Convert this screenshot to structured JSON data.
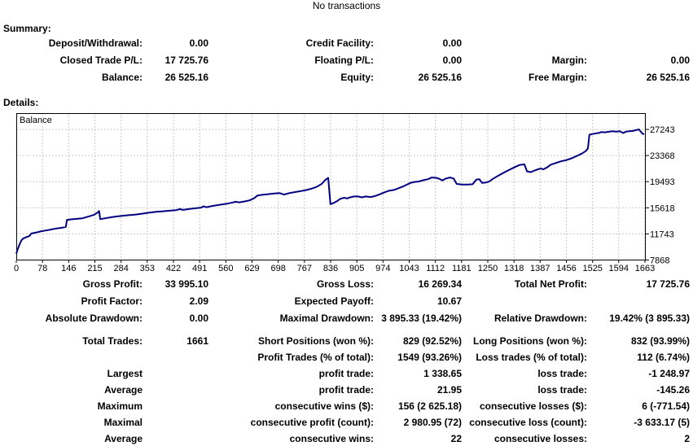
{
  "title": "No transactions",
  "summary": {
    "heading": "Summary:",
    "rows": [
      [
        "Deposit/Withdrawal:",
        "0.00",
        "Credit Facility:",
        "0.00",
        "",
        ""
      ],
      [
        "Closed Trade P/L:",
        "17 725.76",
        "Floating P/L:",
        "0.00",
        "Margin:",
        "0.00"
      ],
      [
        "Balance:",
        "26 525.16",
        "Equity:",
        "26 525.16",
        "Free Margin:",
        "26 525.16"
      ]
    ]
  },
  "details": {
    "heading": "Details:"
  },
  "stats": {
    "group_a": [
      [
        "Gross Profit:",
        "33 995.10",
        "Gross Loss:",
        "16 269.34",
        "Total Net Profit:",
        "17 725.76"
      ],
      [
        "Profit Factor:",
        "2.09",
        "Expected Payoff:",
        "10.67",
        "",
        ""
      ],
      [
        "Absolute Drawdown:",
        "0.00",
        "Maximal Drawdown:",
        "3 895.33 (19.42%)",
        "Relative Drawdown:",
        "19.42% (3 895.33)"
      ]
    ],
    "group_b": [
      [
        "Total Trades:",
        "1661",
        "Short Positions (won %):",
        "829 (92.52%)",
        "Long Positions (won %):",
        "832 (93.99%)"
      ],
      [
        "",
        "",
        "Profit Trades (% of total):",
        "1549 (93.26%)",
        "Loss trades (% of total):",
        "112 (6.74%)"
      ],
      [
        "Largest",
        "",
        "profit trade:",
        "1 338.65",
        "loss trade:",
        "-1 248.97"
      ],
      [
        "Average",
        "",
        "profit trade:",
        "21.95",
        "loss trade:",
        "-145.26"
      ],
      [
        "Maximum",
        "",
        "consecutive wins ($):",
        "156 (2 625.18)",
        "consecutive losses ($):",
        "6 (-771.54)"
      ],
      [
        "Maximal",
        "",
        "consecutive profit (count):",
        "2 980.95 (72)",
        "consecutive loss (count):",
        "-3 633.17 (5)"
      ],
      [
        "Average",
        "",
        "consecutive wins:",
        "22",
        "consecutive losses:",
        "2"
      ]
    ]
  },
  "chart_data": {
    "type": "line",
    "series_label": "Balance",
    "line_color": "#000080",
    "grid_color": "#c8c8c8",
    "border_color": "#000000",
    "x_ticks": [
      0,
      78,
      146,
      215,
      284,
      353,
      422,
      491,
      560,
      629,
      698,
      767,
      836,
      905,
      974,
      1043,
      1112,
      1181,
      1250,
      1318,
      1387,
      1456,
      1525,
      1594,
      1663
    ],
    "y_ticks": [
      7868,
      11743,
      15618,
      19493,
      23368,
      27243
    ],
    "xlim": [
      0,
      1663
    ],
    "ylim": [
      7868,
      29750
    ],
    "grid": true,
    "points": [
      [
        0,
        8800
      ],
      [
        3,
        9350
      ],
      [
        6,
        9800
      ],
      [
        10,
        10350
      ],
      [
        14,
        10800
      ],
      [
        18,
        11050
      ],
      [
        22,
        11150
      ],
      [
        28,
        11300
      ],
      [
        34,
        11400
      ],
      [
        40,
        11800
      ],
      [
        48,
        11900
      ],
      [
        56,
        12000
      ],
      [
        64,
        12100
      ],
      [
        78,
        12250
      ],
      [
        92,
        12400
      ],
      [
        106,
        12550
      ],
      [
        120,
        12650
      ],
      [
        131,
        12780
      ],
      [
        134,
        13810
      ],
      [
        145,
        13900
      ],
      [
        160,
        13980
      ],
      [
        175,
        14060
      ],
      [
        190,
        14300
      ],
      [
        205,
        14550
      ],
      [
        215,
        14900
      ],
      [
        219,
        15140
      ],
      [
        222,
        13930
      ],
      [
        235,
        14060
      ],
      [
        250,
        14200
      ],
      [
        265,
        14330
      ],
      [
        284,
        14450
      ],
      [
        300,
        14530
      ],
      [
        316,
        14620
      ],
      [
        334,
        14750
      ],
      [
        352,
        14900
      ],
      [
        370,
        15010
      ],
      [
        388,
        15100
      ],
      [
        405,
        15180
      ],
      [
        422,
        15260
      ],
      [
        433,
        15430
      ],
      [
        441,
        15310
      ],
      [
        458,
        15450
      ],
      [
        474,
        15540
      ],
      [
        489,
        15640
      ],
      [
        495,
        15830
      ],
      [
        503,
        15700
      ],
      [
        518,
        15880
      ],
      [
        538,
        16060
      ],
      [
        558,
        16230
      ],
      [
        573,
        16400
      ],
      [
        580,
        16510
      ],
      [
        590,
        16430
      ],
      [
        604,
        16560
      ],
      [
        617,
        16720
      ],
      [
        629,
        17030
      ],
      [
        638,
        17440
      ],
      [
        652,
        17550
      ],
      [
        666,
        17640
      ],
      [
        682,
        17740
      ],
      [
        697,
        17790
      ],
      [
        708,
        17570
      ],
      [
        723,
        17800
      ],
      [
        739,
        17960
      ],
      [
        754,
        18110
      ],
      [
        767,
        18250
      ],
      [
        781,
        18460
      ],
      [
        794,
        18710
      ],
      [
        807,
        19120
      ],
      [
        817,
        19720
      ],
      [
        825,
        20058
      ],
      [
        831,
        16162
      ],
      [
        839,
        16320
      ],
      [
        849,
        16620
      ],
      [
        857,
        16950
      ],
      [
        867,
        17100
      ],
      [
        875,
        17010
      ],
      [
        883,
        17160
      ],
      [
        894,
        17300
      ],
      [
        904,
        17300
      ],
      [
        914,
        17160
      ],
      [
        924,
        17300
      ],
      [
        937,
        17210
      ],
      [
        949,
        17360
      ],
      [
        961,
        17610
      ],
      [
        974,
        17910
      ],
      [
        987,
        18160
      ],
      [
        999,
        18260
      ],
      [
        1011,
        18510
      ],
      [
        1024,
        18810
      ],
      [
        1043,
        19310
      ],
      [
        1054,
        19460
      ],
      [
        1064,
        19510
      ],
      [
        1077,
        19710
      ],
      [
        1089,
        19860
      ],
      [
        1099,
        20110
      ],
      [
        1111,
        20060
      ],
      [
        1119,
        19910
      ],
      [
        1127,
        19660
      ],
      [
        1137,
        19960
      ],
      [
        1147,
        20110
      ],
      [
        1157,
        19960
      ],
      [
        1165,
        19160
      ],
      [
        1179,
        19060
      ],
      [
        1194,
        19060
      ],
      [
        1207,
        19110
      ],
      [
        1217,
        19810
      ],
      [
        1225,
        19860
      ],
      [
        1232,
        19310
      ],
      [
        1242,
        19360
      ],
      [
        1251,
        19510
      ],
      [
        1261,
        19910
      ],
      [
        1273,
        20310
      ],
      [
        1287,
        20760
      ],
      [
        1301,
        21160
      ],
      [
        1317,
        21610
      ],
      [
        1331,
        21960
      ],
      [
        1344,
        22060
      ],
      [
        1351,
        21010
      ],
      [
        1361,
        20910
      ],
      [
        1374,
        21210
      ],
      [
        1387,
        21460
      ],
      [
        1394,
        21310
      ],
      [
        1404,
        21610
      ],
      [
        1414,
        22010
      ],
      [
        1427,
        22260
      ],
      [
        1441,
        22510
      ],
      [
        1456,
        22710
      ],
      [
        1469,
        22960
      ],
      [
        1483,
        23310
      ],
      [
        1496,
        23660
      ],
      [
        1506,
        24010
      ],
      [
        1512,
        24410
      ],
      [
        1516,
        26460
      ],
      [
        1524,
        26560
      ],
      [
        1534,
        26660
      ],
      [
        1541,
        26710
      ],
      [
        1548,
        26860
      ],
      [
        1557,
        26810
      ],
      [
        1567,
        26890
      ],
      [
        1577,
        26960
      ],
      [
        1587,
        26910
      ],
      [
        1597,
        26960
      ],
      [
        1605,
        26710
      ],
      [
        1613,
        26910
      ],
      [
        1621,
        26960
      ],
      [
        1631,
        27010
      ],
      [
        1641,
        27160
      ],
      [
        1647,
        27243
      ],
      [
        1652,
        26910
      ],
      [
        1656,
        26610
      ],
      [
        1661,
        26525
      ]
    ]
  }
}
